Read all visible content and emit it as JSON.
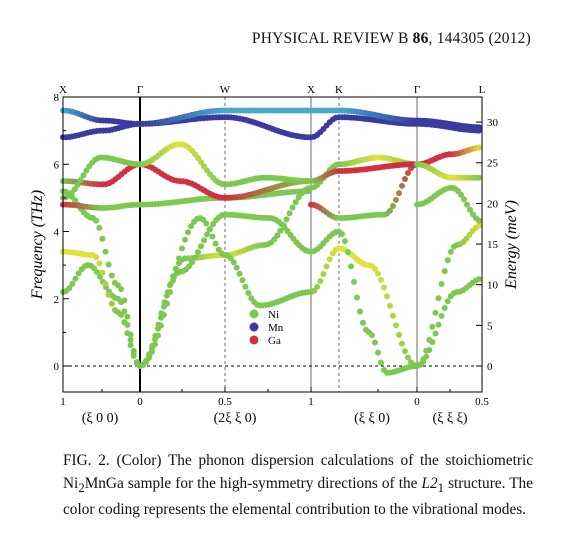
{
  "header": {
    "journal": "PHYSICAL REVIEW B",
    "volume": "86",
    "article": ", 144305 (2012)"
  },
  "colors": {
    "Ni": "#7cc850",
    "Mn": "#3a3aa0",
    "Ga": "#d03040"
  },
  "chart_data": {
    "type": "scatter",
    "title": "",
    "ylabel": "Frequency (THz)",
    "y2label": "Energy (meV)",
    "ylim": [
      -0.35,
      8
    ],
    "yticks": [
      "0",
      "2",
      "4",
      "6",
      "8"
    ],
    "y2ticks": [
      "0",
      "5",
      "10",
      "15",
      "20",
      "25",
      "30"
    ],
    "high_symmetry_points": [
      "X",
      "Γ",
      "W",
      "X",
      "K",
      "Γ",
      "L"
    ],
    "x_tick_labels": [
      "1",
      "0",
      "0.5",
      "1",
      "0",
      "0.5"
    ],
    "direction_labels": [
      "(ξ 0 0)",
      "(2ξ ξ 0)",
      "(ξ ξ 0)",
      "(ξ ξ ξ)"
    ],
    "legend": [
      {
        "label": "Ni",
        "color": "#7cc850"
      },
      {
        "label": "Mn",
        "color": "#3a3aa0"
      },
      {
        "label": "Ga",
        "color": "#d03040"
      }
    ],
    "legend_position": "center",
    "segments": [
      {
        "name": "(ξ 0 0)",
        "from": "X",
        "to": "Γ",
        "xvals": [
          1,
          0
        ]
      },
      {
        "name": "(2ξ ξ 0)",
        "from": "Γ",
        "to": "X",
        "xvals": [
          0,
          0.5,
          1
        ]
      },
      {
        "name": "(ξ ξ 0)",
        "from": "K",
        "to": "Γ",
        "xvals": [
          0.75,
          0
        ]
      },
      {
        "name": "(ξ ξ ξ)",
        "from": "Γ",
        "to": "L",
        "xvals": [
          0,
          0.5
        ]
      }
    ],
    "branches_at_X": [
      2.2,
      3.4,
      4.8,
      5.2,
      5.5,
      6.8,
      7.6
    ],
    "branches_at_Gamma": [
      0,
      6.0,
      7.2
    ],
    "branches_at_W": [
      3.3,
      4.5,
      5.0,
      6.5,
      7.4
    ],
    "branches_at_L": [
      2.6,
      4.2,
      5.6,
      6.5,
      7.0
    ]
  },
  "caption": {
    "label": "FIG. 2.",
    "text_before_formula": " (Color) The phonon dispersion calculations of the stoichiometric Ni",
    "formula_sub": "2",
    "formula_rest": "MnGa sample for the high-symmetry directions of the ",
    "structure": "L2",
    "structure_sub": "1",
    "text_after": " structure. The color coding represents the elemental contribution to the vibrational modes."
  }
}
